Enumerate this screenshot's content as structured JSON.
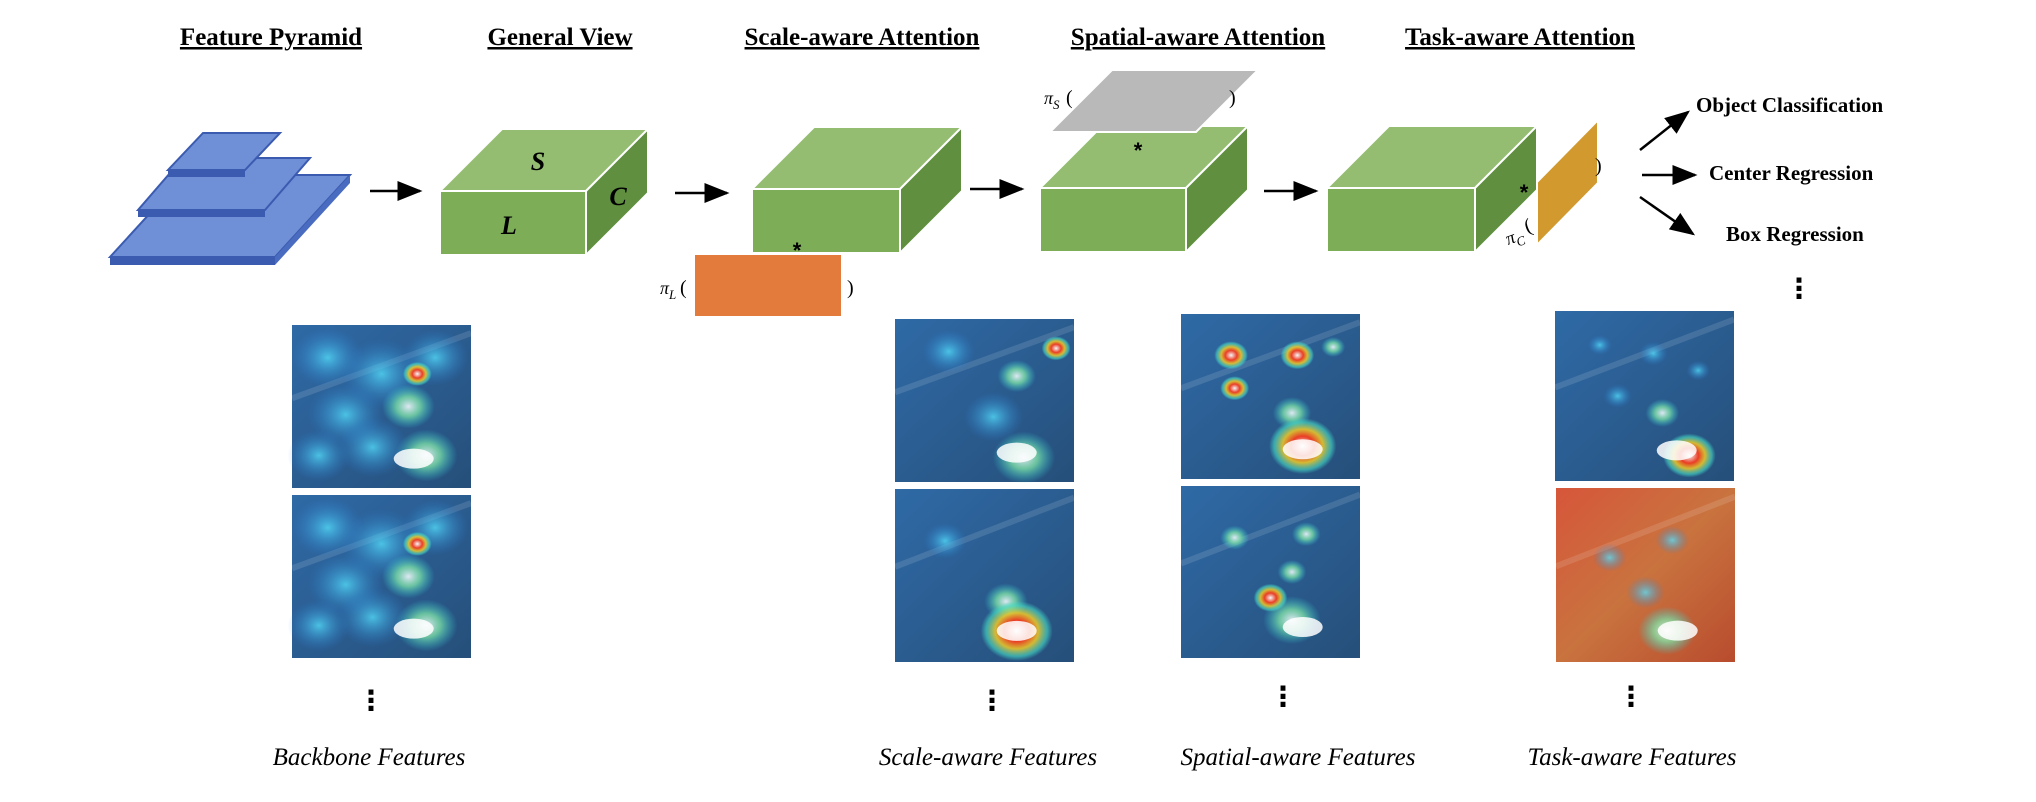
{
  "headings": {
    "feature_pyramid": "Feature Pyramid",
    "general_view": "General View",
    "scale_aware": "Scale-aware Attention",
    "spatial_aware": "Spatial-aware Attention",
    "task_aware": "Task-aware Attention"
  },
  "cube_labels": {
    "s": "S",
    "l": "L",
    "c": "C"
  },
  "attention": {
    "pi_l": "π",
    "pi_l_sub": "L",
    "pi_s": "π",
    "pi_s_sub": "S",
    "pi_c": "π",
    "pi_c_sub": "C",
    "open_paren": "(",
    "close_paren": ")",
    "conv_symbol": "*"
  },
  "outputs": {
    "items": [
      "Object Classification",
      "Center Regression",
      "Box Regression"
    ],
    "more": "⋮"
  },
  "captions": {
    "backbone": "Backbone Features",
    "scale": "Scale-aware Features",
    "spatial": "Spatial-aware Features",
    "task": "Task-aware Features"
  },
  "ellipsis": "⋮",
  "colors": {
    "pyramid_fill": "#6f8fd6",
    "pyramid_edge": "#3b5bb0",
    "cube_front": "#7dae57",
    "cube_top": "#94bd72",
    "cube_side": "#5f8f3f",
    "scale_attention": "#e27b3b",
    "spatial_attention": "#b9b9b9",
    "task_attention": "#d29a2e",
    "heatmap_base": "#2b5f8f"
  }
}
